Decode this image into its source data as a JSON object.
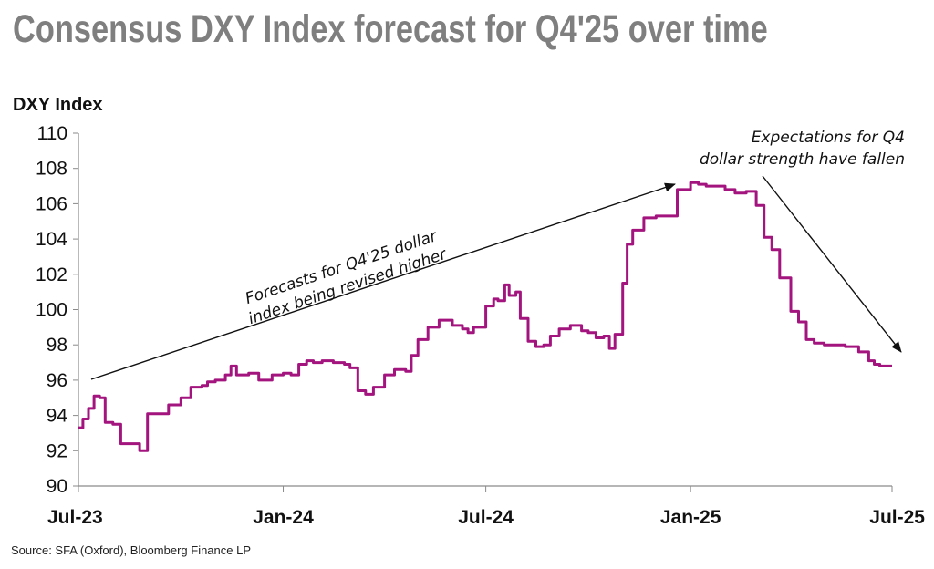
{
  "chart_data": {
    "type": "line",
    "title": "Consensus DXY Index forecast for Q4'25 over time",
    "ylabel": "DXY Index",
    "xlabel": "",
    "ylim": [
      90,
      110
    ],
    "yticks": [
      "90",
      "92",
      "94",
      "96",
      "98",
      "100",
      "102",
      "104",
      "106",
      "108",
      "110"
    ],
    "xtick_labels": [
      "Jul-23",
      "Jan-24",
      "Jul-24",
      "Jan-25",
      "Jul-25"
    ],
    "grid": false,
    "line_color": "#a3147f",
    "series": [
      {
        "x": [
          "2023-07-01",
          "2023-07-05",
          "2023-07-10",
          "2023-07-15",
          "2023-07-20",
          "2023-07-25",
          "2023-08-01",
          "2023-08-08",
          "2023-08-12",
          "2023-08-20",
          "2023-08-25",
          "2023-09-01",
          "2023-09-08",
          "2023-09-12",
          "2023-09-16",
          "2023-09-20",
          "2023-10-01",
          "2023-10-10",
          "2023-10-20",
          "2023-10-25",
          "2023-11-01",
          "2023-11-10",
          "2023-11-15",
          "2023-11-20",
          "2023-12-01",
          "2023-12-10",
          "2023-12-15",
          "2023-12-22",
          "2024-01-01",
          "2024-01-08",
          "2024-01-15",
          "2024-01-22",
          "2024-01-28",
          "2024-02-05",
          "2024-02-15",
          "2024-02-25",
          "2024-03-01",
          "2024-03-08",
          "2024-03-15",
          "2024-03-22",
          "2024-04-01",
          "2024-04-10",
          "2024-04-20",
          "2024-04-25",
          "2024-05-01",
          "2024-05-10",
          "2024-05-20",
          "2024-06-01",
          "2024-06-10",
          "2024-06-15",
          "2024-06-20",
          "2024-07-01",
          "2024-07-08",
          "2024-07-12",
          "2024-07-18",
          "2024-07-22",
          "2024-07-28",
          "2024-08-01",
          "2024-08-08",
          "2024-08-15",
          "2024-08-22",
          "2024-08-28",
          "2024-09-05",
          "2024-09-15",
          "2024-09-25",
          "2024-10-01",
          "2024-10-08",
          "2024-10-15",
          "2024-10-20",
          "2024-10-25",
          "2024-11-01",
          "2024-11-05",
          "2024-11-10",
          "2024-11-20",
          "2024-12-01",
          "2024-12-10",
          "2024-12-20",
          "2025-01-01",
          "2025-01-08",
          "2025-01-15",
          "2025-01-25",
          "2025-02-01",
          "2025-02-10",
          "2025-02-20",
          "2025-03-01",
          "2025-03-08",
          "2025-03-15",
          "2025-03-22",
          "2025-04-01",
          "2025-04-08",
          "2025-04-15",
          "2025-04-22",
          "2025-05-01",
          "2025-05-10",
          "2025-05-20",
          "2025-06-01",
          "2025-06-10",
          "2025-06-15",
          "2025-06-20",
          "2025-06-25",
          "2025-07-01"
        ],
        "values": [
          93.3,
          93.8,
          94.4,
          95.1,
          95.0,
          93.6,
          93.5,
          92.4,
          92.4,
          92.4,
          92.0,
          94.1,
          94.1,
          94.1,
          94.1,
          94.6,
          95.0,
          95.6,
          95.7,
          95.9,
          96.0,
          96.3,
          96.8,
          96.3,
          96.4,
          96.0,
          96.0,
          96.3,
          96.4,
          96.3,
          96.9,
          97.1,
          97.0,
          97.1,
          97.0,
          96.9,
          96.7,
          95.4,
          95.2,
          95.6,
          96.3,
          96.6,
          96.5,
          97.4,
          98.3,
          99.0,
          99.4,
          99.1,
          98.9,
          98.7,
          99.0,
          100.2,
          100.6,
          100.5,
          101.4,
          100.8,
          101.0,
          99.5,
          98.2,
          97.9,
          98.0,
          98.5,
          98.9,
          99.1,
          98.8,
          98.7,
          98.4,
          98.5,
          97.8,
          98.6,
          101.5,
          103.7,
          104.5,
          105.2,
          105.3,
          105.3,
          106.8,
          107.2,
          107.1,
          107.0,
          107.0,
          106.8,
          106.6,
          106.7,
          105.9,
          104.1,
          103.4,
          101.8,
          99.9,
          99.3,
          98.3,
          98.1,
          98.0,
          98.0,
          97.9,
          97.6,
          97.1,
          96.9,
          96.8,
          96.8,
          96.8
        ]
      }
    ],
    "annotations": [
      {
        "lines": [
          "Forecasts for Q4'25 dollar",
          "index being revised higher"
        ]
      },
      {
        "lines": [
          "Expectations for Q4",
          "dollar strength have fallen"
        ]
      }
    ],
    "source": "Source: SFA (Oxford), Bloomberg Finance LP"
  }
}
